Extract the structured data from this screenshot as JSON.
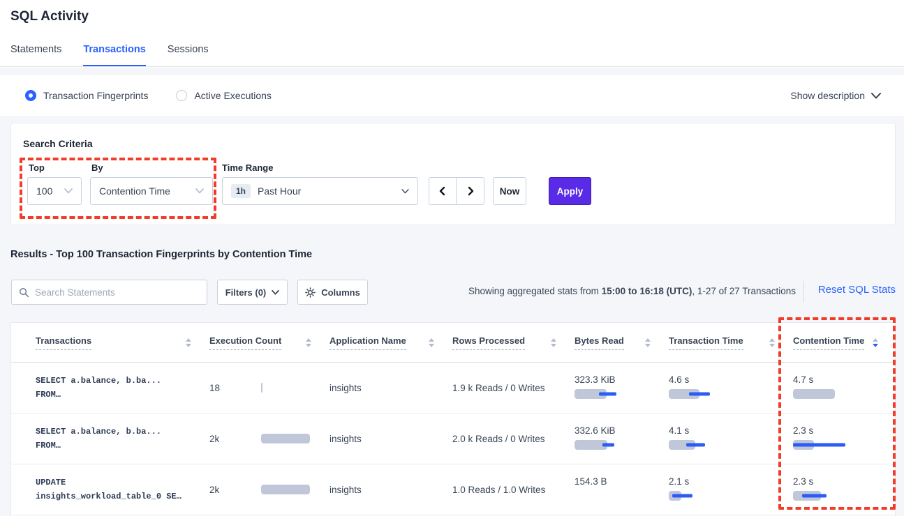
{
  "page": {
    "title": "SQL Activity"
  },
  "tabs": [
    {
      "label": "Statements",
      "active": false
    },
    {
      "label": "Transactions",
      "active": true
    },
    {
      "label": "Sessions",
      "active": false
    }
  ],
  "view_bar": {
    "radios": [
      {
        "label": "Transaction Fingerprints",
        "selected": true
      },
      {
        "label": "Active Executions",
        "selected": false
      }
    ],
    "show_description_label": "Show description"
  },
  "search_criteria": {
    "heading": "Search Criteria",
    "top_label": "Top",
    "top_value": "100",
    "by_label": "By",
    "by_value": "Contention Time",
    "time_range_label": "Time Range",
    "time_range_badge": "1h",
    "time_range_value": "Past Hour",
    "now_label": "Now",
    "apply_label": "Apply"
  },
  "results": {
    "heading": "Results - Top 100 Transaction Fingerprints by Contention Time",
    "search_placeholder": "Search Statements",
    "filters_label": "Filters (0)",
    "columns_label": "Columns",
    "stats_prefix": "Showing aggregated stats from ",
    "stats_range": "15:00 to 16:18 (UTC)",
    "stats_suffix": ", 1-27 of 27 Transactions",
    "reset_label": "Reset SQL Stats"
  },
  "table": {
    "columns": [
      {
        "label": "Transactions",
        "sort": "none"
      },
      {
        "label": "Execution Count",
        "sort": "none"
      },
      {
        "label": "Application Name",
        "sort": "none"
      },
      {
        "label": "Rows Processed",
        "sort": "none"
      },
      {
        "label": "Bytes Read",
        "sort": "none"
      },
      {
        "label": "Transaction Time",
        "sort": "none"
      },
      {
        "label": "Contention Time",
        "sort": "desc"
      }
    ],
    "rows": [
      {
        "transaction_line1": "SELECT a.balance, b.ba...",
        "transaction_line2": "FROM…",
        "execution_count": "18",
        "application_name": "insights",
        "rows_processed": "1.9 k Reads / 0 Writes",
        "bytes_read": "323.3 KiB",
        "transaction_time": "4.6 s",
        "contention_time": "4.7 s",
        "bars": {
          "exec": {
            "bar": 2
          },
          "bytes": {
            "bar": 66,
            "line": [
              50,
              85
            ]
          },
          "txn": {
            "bar": 63,
            "line": [
              41,
              84
            ]
          },
          "contention": {
            "bar": 67
          }
        }
      },
      {
        "transaction_line1": "SELECT a.balance, b.ba...",
        "transaction_line2": "FROM…",
        "execution_count": "2k",
        "application_name": "insights",
        "rows_processed": "2.0 k Reads / 0 Writes",
        "bytes_read": "332.6 KiB",
        "transaction_time": "4.1 s",
        "contention_time": "2.3 s",
        "bars": {
          "exec": {
            "bar": 100
          },
          "bytes": {
            "bar": 67,
            "line": [
              57,
              81
            ]
          },
          "txn": {
            "bar": 54,
            "line": [
              36,
              74
            ]
          },
          "contention": {
            "bar": 33,
            "line": [
              0,
              83
            ]
          }
        }
      },
      {
        "transaction_line1": "UPDATE",
        "transaction_line2": "insights_workload_table_0 SE…",
        "execution_count": "2k",
        "application_name": "insights",
        "rows_processed": "1.0 Reads / 1.0 Writes",
        "bytes_read": "154.3 B",
        "transaction_time": "2.1 s",
        "contention_time": "2.3 s",
        "bars": {
          "exec": {
            "bar": 100
          },
          "bytes": null,
          "txn": {
            "bar": 26,
            "line": [
              7,
              49
            ]
          },
          "contention": {
            "bar": 44,
            "line": [
              14,
              53
            ]
          }
        }
      }
    ]
  },
  "colors": {
    "accent_blue": "#2962ff",
    "apply_purple": "#5a2be6",
    "annotation_red": "#f13c2a",
    "bar_gray": "#c0c7d9",
    "bar_line_blue": "#2b5cf6",
    "page_background": "#f4f6fa"
  }
}
